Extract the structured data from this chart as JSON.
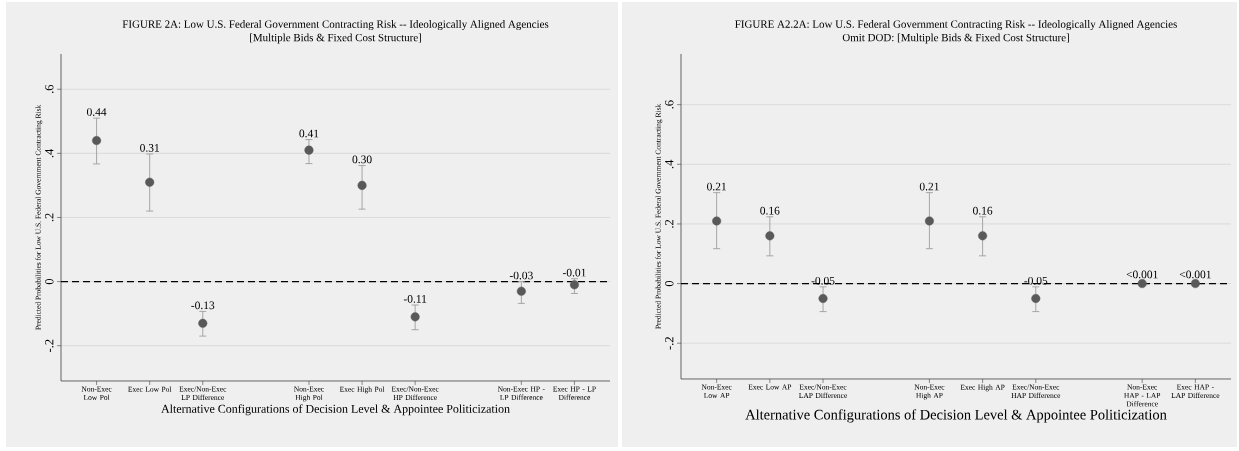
{
  "chart_data": [
    {
      "type": "scatter",
      "title": "FIGURE 2A: Low U.S. Federal Government Contracting Risk -- Ideologically Aligned Agencies",
      "subtitle": "[Multiple Bids & Fixed Cost Structure]",
      "xlabel": "Alternative Configurations of Decision Level & Appointee Politicization",
      "ylabel": "Predicted Probabilities for Low U.S. Federal Government Contracting Risk",
      "categories": [
        "Non-Exec Low Pol",
        "Exec Low Pol",
        "Exec/Non-Exec LP Difference",
        null,
        "Non-Exec High Pol",
        "Exec High Pol",
        "Exec/Non-Exec HP Difference",
        null,
        "Non-Exec HP - LP Difference",
        "Exec HP - LP Difference"
      ],
      "series": [
        {
          "color": "#595959",
          "values": [
            0.44,
            0.31,
            -0.13,
            null,
            0.41,
            0.3,
            -0.11,
            null,
            -0.03,
            -0.01
          ],
          "errors": [
            [
              0.367,
              0.51
            ],
            [
              0.22,
              0.398
            ],
            [
              -0.17,
              -0.093
            ],
            null,
            [
              0.368,
              0.443
            ],
            [
              0.226,
              0.362
            ],
            [
              -0.15,
              -0.073
            ],
            null,
            [
              -0.068,
              0.0
            ],
            [
              -0.037,
              0.009
            ]
          ],
          "value_labels": [
            "0.44",
            "0.31",
            "-0.13",
            null,
            "0.41",
            "0.30",
            "-0.11",
            null,
            "-0.03",
            "-0.01"
          ]
        }
      ],
      "ylim": [
        -0.31,
        0.71
      ],
      "yticks": [
        {
          "value": -0.2,
          "label": "-.2"
        },
        0,
        {
          "value": 0.2,
          "label": ".2"
        },
        {
          "value": 0.4,
          "label": ".4"
        },
        {
          "value": 0.6,
          "label": ".6"
        }
      ],
      "grid": "y",
      "marker": "circle",
      "ref_lines": [
        {
          "axis": "y",
          "value": 0,
          "color": "#000000",
          "line_style": "dashed"
        }
      ]
    },
    {
      "type": "scatter",
      "title": "FIGURE A2.2A: Low U.S. Federal Government Contracting Risk -- Ideologically Aligned Agencies",
      "subtitle": "Omit DOD: [Multiple Bids & Fixed Cost Structure]",
      "xlabel": "Alternative Configurations of Decision Level & Appointee Politicization",
      "ylabel": "Predicted Probabilities for Low U.S. Federal Government Contracting Risk",
      "categories": [
        "Non-Exec Low AP",
        "Exec Low AP",
        "Exec/Non-Exec LAP Difference",
        null,
        "Non-Exec High AP",
        "Exec High AP",
        "Exec/Non-Exec HAP Difference",
        null,
        "Non-Exec HAP - LAP Difference",
        "Exec HAP - LAP Difference"
      ],
      "series": [
        {
          "color": "#595959",
          "values": [
            0.21,
            0.16,
            -0.05,
            null,
            0.21,
            0.16,
            -0.05,
            null,
            0,
            0
          ],
          "errors": [
            [
              0.117,
              0.305
            ],
            [
              0.093,
              0.224
            ],
            [
              -0.094,
              -0.011
            ],
            null,
            [
              0.117,
              0.305
            ],
            [
              0.093,
              0.224
            ],
            [
              -0.094,
              -0.011
            ],
            null,
            null,
            null
          ],
          "value_labels": [
            "0.21",
            "0.16",
            "-0.05",
            null,
            "0.21",
            "0.16",
            "-0.05",
            null,
            "<0.001",
            "<0.001"
          ]
        }
      ],
      "ylim": [
        -0.32,
        0.77
      ],
      "yticks": [
        {
          "value": -0.2,
          "label": "-.2"
        },
        0,
        {
          "value": 0.2,
          "label": ".2"
        },
        {
          "value": 0.4,
          "label": ".4"
        },
        {
          "value": 0.6,
          "label": ".6"
        }
      ],
      "grid": "y",
      "marker": "circle",
      "ref_lines": [
        {
          "axis": "y",
          "value": 0,
          "color": "#000000",
          "line_style": "dashed"
        }
      ]
    }
  ]
}
